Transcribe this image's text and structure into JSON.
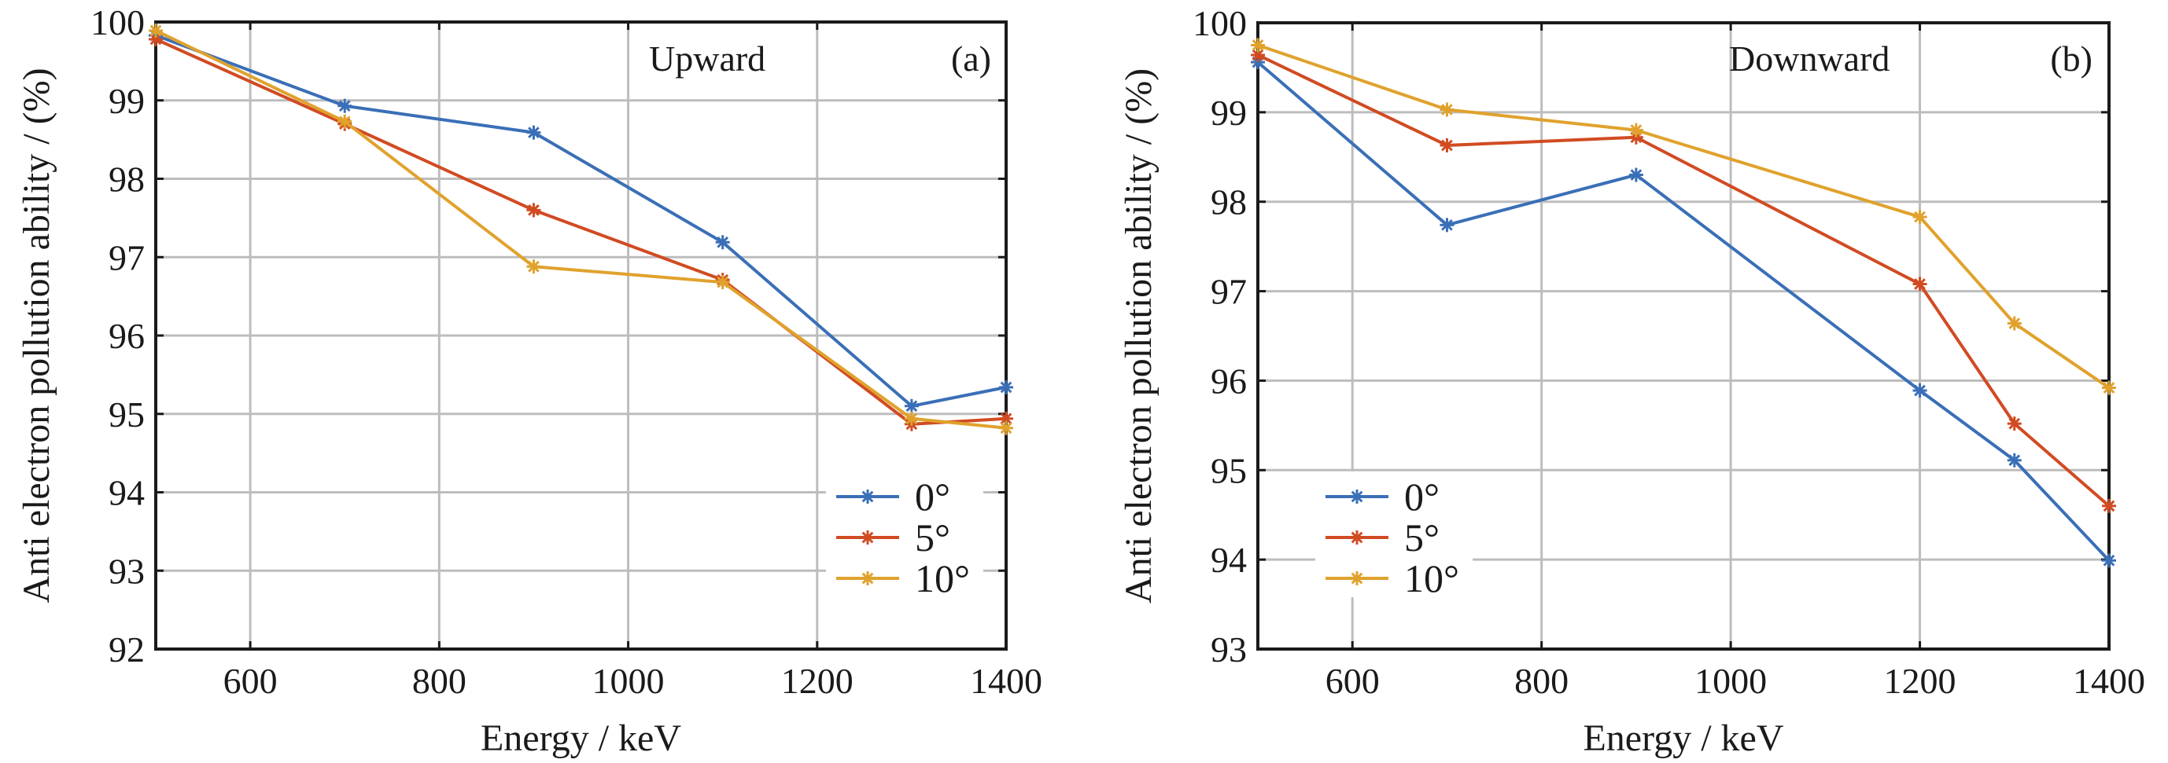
{
  "chart_data": [
    {
      "type": "line",
      "panel_label": "(a)",
      "annotation": "Upward",
      "xlabel": "Energy / keV",
      "ylabel": "Anti electron pollution ability / (%)",
      "xlim": [
        500,
        1400
      ],
      "ylim": [
        92,
        100
      ],
      "xticks": [
        600,
        800,
        1000,
        1200,
        1400
      ],
      "yticks": [
        92,
        93,
        94,
        95,
        96,
        97,
        98,
        99,
        100
      ],
      "grid": true,
      "legend_position": "bottom-right",
      "x": [
        500,
        700,
        900,
        1100,
        1300,
        1400
      ],
      "series": [
        {
          "name": "0°",
          "color": "#3a6fb7",
          "values": [
            99.83,
            98.93,
            98.59,
            97.19,
            95.1,
            95.34
          ]
        },
        {
          "name": "5°",
          "color": "#d14b22",
          "values": [
            99.78,
            98.7,
            97.6,
            96.71,
            94.87,
            94.94
          ]
        },
        {
          "name": "10°",
          "color": "#e0a22d",
          "values": [
            99.89,
            98.73,
            96.88,
            96.68,
            94.94,
            94.82
          ]
        }
      ]
    },
    {
      "type": "line",
      "panel_label": "(b)",
      "annotation": "Downward",
      "xlabel": "Energy / keV",
      "ylabel": "Anti electron pollution ability / (%)",
      "xlim": [
        500,
        1400
      ],
      "ylim": [
        93,
        100
      ],
      "xticks": [
        600,
        800,
        1000,
        1200,
        1400
      ],
      "yticks": [
        93,
        94,
        95,
        96,
        97,
        98,
        99,
        100
      ],
      "grid": true,
      "legend_position": "bottom-left",
      "x": [
        500,
        700,
        900,
        1200,
        1300,
        1400
      ],
      "series": [
        {
          "name": "0°",
          "color": "#3a6fb7",
          "values": [
            99.56,
            97.74,
            98.3,
            95.89,
            95.11,
            93.99
          ]
        },
        {
          "name": "5°",
          "color": "#d14b22",
          "values": [
            99.64,
            98.63,
            98.72,
            97.08,
            95.52,
            94.6
          ]
        },
        {
          "name": "10°",
          "color": "#e0a22d",
          "values": [
            99.75,
            99.03,
            98.8,
            97.83,
            96.64,
            95.92
          ]
        }
      ]
    }
  ]
}
